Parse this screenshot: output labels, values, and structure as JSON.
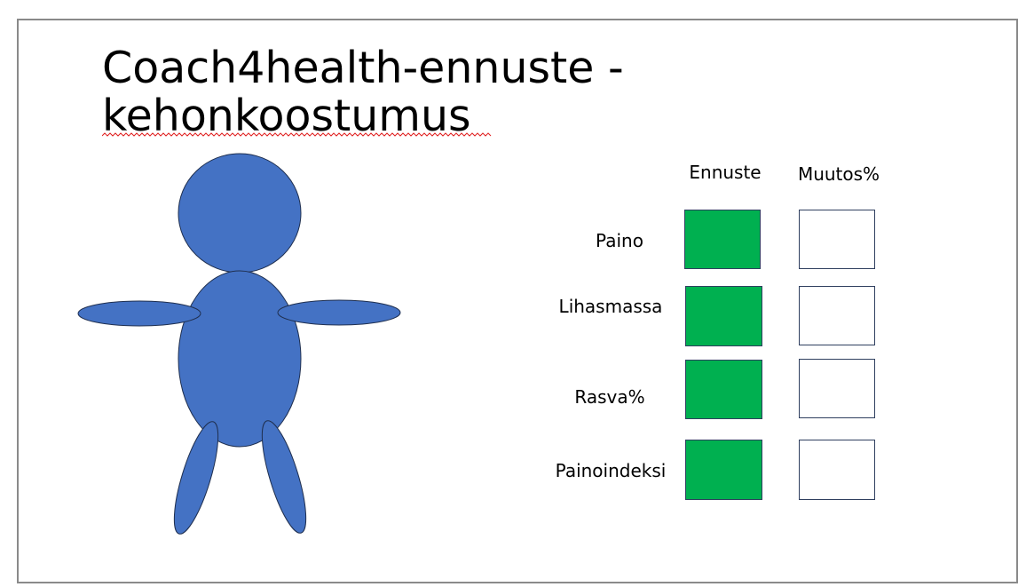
{
  "slide": {
    "title_line_1": "Coach4health-ennuste -",
    "title_line_2": "kehonkoostumus"
  },
  "figure": {
    "icon": "person-figure-icon",
    "fill_color": "#4472c4",
    "stroke_color": "#1f2f4f"
  },
  "table": {
    "headers": [
      "Ennuste",
      "Muutos%"
    ],
    "rows": [
      {
        "label": "Paino"
      },
      {
        "label": "Lihasmassa"
      },
      {
        "label": "Rasva%"
      },
      {
        "label": "Painoindeksi"
      }
    ],
    "ennuste_color": "#00b050",
    "muutos_color": "#ffffff"
  },
  "colors": {
    "spellcheck_underline": "#e02020",
    "slide_border": "#8a8a8a"
  }
}
